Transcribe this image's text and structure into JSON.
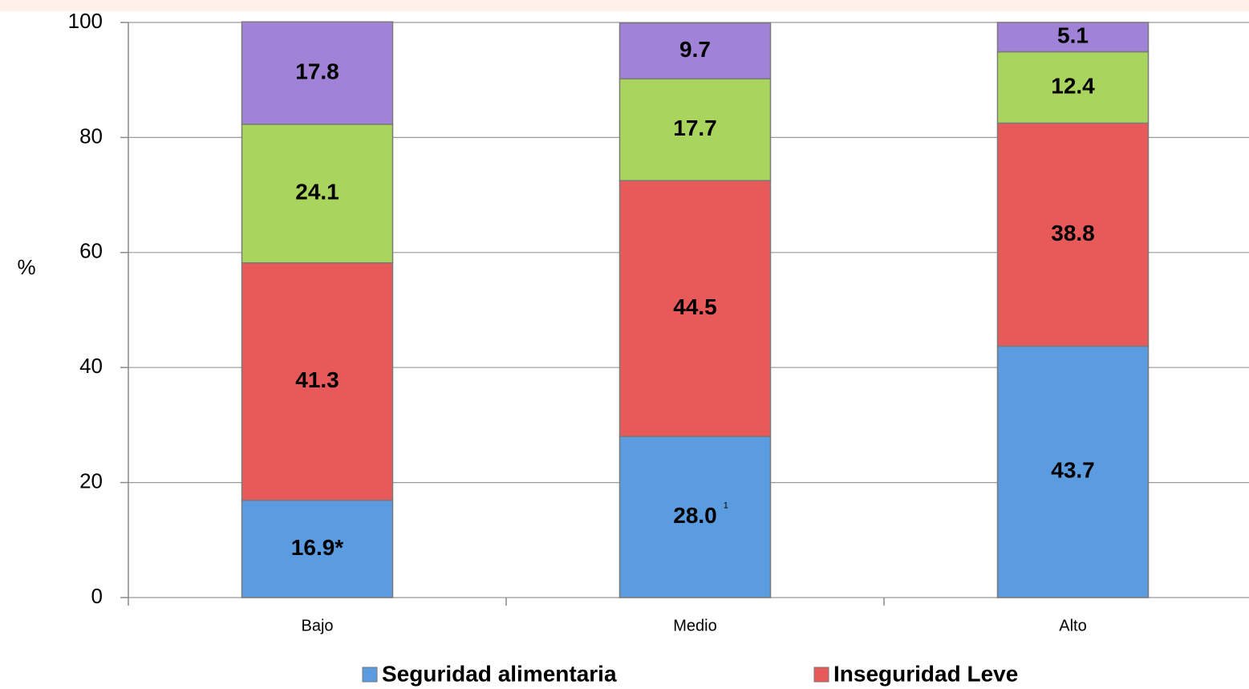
{
  "chart_data": {
    "type": "stacked_bar",
    "y_label": "%",
    "categories": [
      "Bajo",
      "Medio",
      "Alto"
    ],
    "series": [
      {
        "name": "Seguridad alimentaria",
        "color": "#5b9be0",
        "values": [
          16.9,
          28.0,
          43.7
        ],
        "value_labels": [
          "16.9*",
          "28.0",
          "43.7"
        ]
      },
      {
        "name": "Inseguridad Leve",
        "color": "#e85a5a",
        "values": [
          41.3,
          44.5,
          38.8
        ]
      },
      {
        "color": "#a9d45e",
        "values": [
          24.1,
          17.7,
          12.4
        ]
      },
      {
        "color": "#a083d6",
        "values": [
          17.8,
          9.7,
          5.1
        ]
      }
    ],
    "annotation": "1",
    "ylim": [
      0,
      100
    ],
    "yticks": [
      0,
      20,
      40,
      60,
      80,
      100
    ],
    "grid": true
  }
}
